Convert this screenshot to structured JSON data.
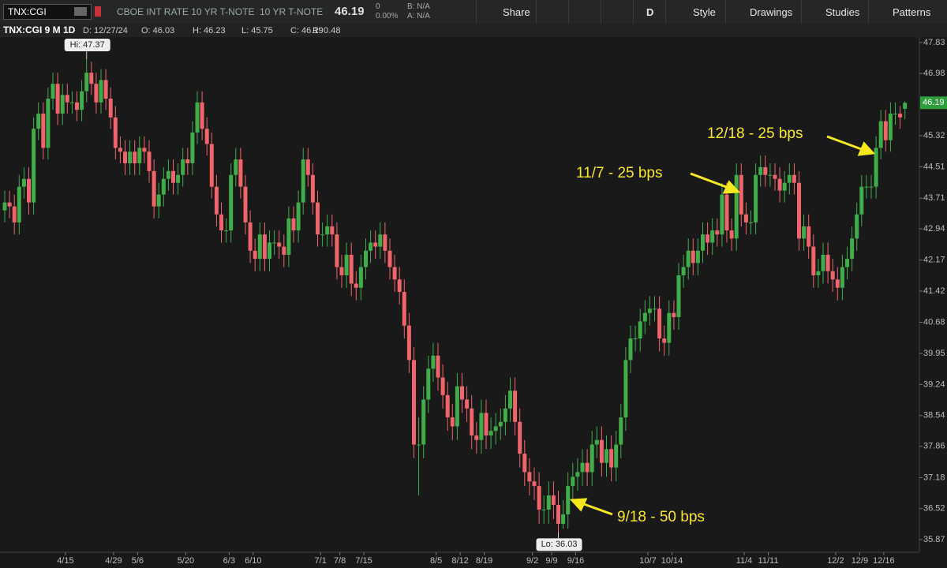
{
  "toolbar": {
    "symbol": "TNX:CGI",
    "description": "CBOE INT RATE 10 YR T-NOTE",
    "short_name": "10 YR T-NOTE",
    "last": "46.19",
    "change": "0",
    "change_pct": "0.00%",
    "bid": "B: N/A",
    "ask": "A: N/A",
    "buttons": [
      "Share",
      "D",
      "Style",
      "Drawings",
      "Studies",
      "Patterns"
    ]
  },
  "chart_data": {
    "type": "candlestick",
    "header": "TNX:CGI 9 M 1D",
    "info": [
      "D: 12/27/24",
      "O: 46.03",
      "H: 46.23",
      "L: 45.75",
      "C: 46.19",
      "R: 0.48"
    ],
    "categories": [
      null,
      null,
      null,
      null,
      null,
      null,
      null,
      null,
      null,
      "4/15",
      null,
      null,
      null,
      null,
      null,
      null,
      null,
      null,
      null,
      "4/29",
      null,
      null,
      null,
      null,
      "5/6",
      null,
      null,
      null,
      null,
      null,
      null,
      null,
      null,
      null,
      "5/20",
      null,
      null,
      null,
      null,
      null,
      null,
      null,
      null,
      "6/3",
      null,
      null,
      null,
      null,
      "6/10",
      null,
      null,
      null,
      null,
      null,
      null,
      null,
      null,
      null,
      null,
      null,
      null,
      null,
      "7/1",
      null,
      null,
      null,
      "7/8",
      null,
      null,
      null,
      null,
      "7/15",
      null,
      null,
      null,
      null,
      null,
      null,
      null,
      null,
      null,
      null,
      null,
      null,
      null,
      null,
      "8/5",
      null,
      null,
      null,
      null,
      "8/12",
      null,
      null,
      null,
      null,
      "8/19",
      null,
      null,
      null,
      null,
      null,
      null,
      null,
      null,
      null,
      "9/2",
      null,
      null,
      null,
      "9/9",
      null,
      null,
      null,
      null,
      "9/16",
      null,
      null,
      null,
      null,
      null,
      null,
      null,
      null,
      null,
      null,
      null,
      null,
      null,
      null,
      "10/7",
      null,
      null,
      null,
      null,
      "10/14",
      null,
      null,
      null,
      null,
      null,
      null,
      null,
      null,
      null,
      null,
      null,
      null,
      null,
      null,
      "11/4",
      null,
      null,
      null,
      null,
      "11/11",
      null,
      null,
      null,
      null,
      null,
      null,
      null,
      null,
      null,
      null,
      null,
      null,
      null,
      "12/2",
      null,
      null,
      null,
      null,
      "12/9",
      null,
      null,
      null,
      null,
      "12/16",
      null,
      null,
      null,
      null,
      null,
      null,
      null,
      null
    ],
    "ohlc": [
      [
        43.4,
        43.9,
        43.1,
        43.6
      ],
      [
        43.6,
        43.9,
        43.2,
        43.5
      ],
      [
        43.5,
        43.8,
        42.8,
        43.1
      ],
      [
        43.1,
        44.3,
        42.8,
        44.0
      ],
      [
        44.0,
        44.5,
        43.7,
        44.2
      ],
      [
        44.2,
        44.5,
        43.3,
        43.6
      ],
      [
        43.6,
        45.8,
        43.3,
        45.5
      ],
      [
        45.5,
        46.2,
        45.2,
        45.9
      ],
      [
        45.9,
        46.2,
        44.7,
        45.0
      ],
      [
        45.0,
        46.6,
        44.7,
        46.3
      ],
      [
        46.3,
        47.0,
        46.0,
        46.7
      ],
      [
        46.7,
        47.0,
        45.6,
        45.9
      ],
      [
        45.9,
        46.7,
        45.6,
        46.4
      ],
      [
        46.4,
        46.7,
        45.9,
        46.2
      ],
      [
        46.2,
        46.5,
        45.9,
        46.2
      ],
      [
        46.2,
        46.5,
        45.7,
        46.0
      ],
      [
        46.0,
        46.8,
        45.7,
        46.5
      ],
      [
        46.5,
        47.37,
        46.2,
        47.0
      ],
      [
        47.0,
        47.3,
        46.4,
        46.7
      ],
      [
        46.7,
        47.0,
        45.9,
        46.2
      ],
      [
        46.2,
        47.1,
        45.9,
        46.8
      ],
      [
        46.8,
        47.1,
        46.0,
        46.3
      ],
      [
        46.3,
        46.6,
        45.5,
        45.8
      ],
      [
        45.8,
        46.1,
        44.7,
        45.0
      ],
      [
        45.0,
        45.3,
        44.6,
        44.9
      ],
      [
        44.9,
        45.2,
        44.3,
        44.6
      ],
      [
        44.6,
        45.2,
        44.3,
        44.9
      ],
      [
        44.9,
        45.2,
        44.3,
        44.6
      ],
      [
        44.6,
        45.3,
        44.3,
        45.0
      ],
      [
        45.0,
        45.3,
        44.6,
        44.9
      ],
      [
        44.9,
        45.2,
        44.1,
        44.4
      ],
      [
        44.4,
        44.7,
        43.2,
        43.5
      ],
      [
        43.5,
        44.1,
        43.2,
        43.8
      ],
      [
        43.8,
        44.5,
        43.5,
        44.2
      ],
      [
        44.2,
        44.7,
        43.9,
        44.4
      ],
      [
        44.4,
        44.7,
        43.8,
        44.1
      ],
      [
        44.1,
        44.6,
        43.8,
        44.3
      ],
      [
        44.3,
        45.0,
        44.0,
        44.7
      ],
      [
        44.7,
        45.0,
        44.3,
        44.6
      ],
      [
        44.6,
        45.7,
        44.3,
        45.4
      ],
      [
        45.4,
        46.5,
        45.1,
        46.2
      ],
      [
        46.2,
        46.5,
        45.2,
        45.5
      ],
      [
        45.5,
        45.8,
        44.8,
        45.1
      ],
      [
        45.1,
        45.4,
        43.7,
        44.0
      ],
      [
        44.0,
        44.3,
        43.0,
        43.3
      ],
      [
        43.3,
        43.6,
        42.6,
        42.9
      ],
      [
        42.9,
        43.2,
        42.6,
        42.9
      ],
      [
        42.9,
        44.6,
        42.6,
        44.3
      ],
      [
        44.3,
        45.0,
        44.0,
        44.7
      ],
      [
        44.7,
        45.0,
        43.7,
        44.0
      ],
      [
        44.0,
        44.3,
        42.8,
        43.1
      ],
      [
        43.1,
        43.4,
        42.1,
        42.4
      ],
      [
        42.4,
        42.7,
        41.9,
        42.2
      ],
      [
        42.2,
        43.1,
        41.9,
        42.8
      ],
      [
        42.8,
        43.1,
        41.9,
        42.2
      ],
      [
        42.2,
        42.9,
        41.9,
        42.6
      ],
      [
        42.6,
        42.9,
        42.3,
        42.6
      ],
      [
        42.6,
        42.9,
        42.2,
        42.5
      ],
      [
        42.5,
        42.8,
        42.0,
        42.3
      ],
      [
        42.3,
        43.5,
        42.0,
        43.2
      ],
      [
        43.2,
        43.5,
        42.6,
        42.9
      ],
      [
        42.9,
        43.9,
        42.6,
        43.6
      ],
      [
        43.6,
        45.0,
        43.3,
        44.7
      ],
      [
        44.7,
        45.0,
        44.0,
        44.3
      ],
      [
        44.3,
        44.6,
        43.3,
        43.6
      ],
      [
        43.6,
        43.9,
        42.5,
        42.8
      ],
      [
        42.8,
        43.1,
        42.5,
        42.8
      ],
      [
        42.8,
        43.3,
        42.5,
        43.0
      ],
      [
        43.0,
        43.3,
        42.5,
        42.8
      ],
      [
        42.8,
        43.1,
        41.7,
        42.0
      ],
      [
        42.0,
        42.3,
        41.5,
        41.8
      ],
      [
        41.8,
        42.6,
        41.5,
        42.3
      ],
      [
        42.3,
        42.6,
        41.3,
        41.6
      ],
      [
        41.6,
        41.9,
        41.2,
        41.5
      ],
      [
        41.5,
        42.3,
        41.2,
        42.0
      ],
      [
        42.0,
        42.7,
        41.7,
        42.4
      ],
      [
        42.4,
        42.9,
        42.1,
        42.6
      ],
      [
        42.6,
        42.9,
        42.2,
        42.5
      ],
      [
        42.5,
        43.1,
        42.2,
        42.8
      ],
      [
        42.8,
        43.1,
        42.1,
        42.4
      ],
      [
        42.4,
        42.7,
        41.7,
        42.0
      ],
      [
        42.0,
        42.3,
        41.4,
        41.7
      ],
      [
        41.7,
        42.0,
        41.1,
        41.4
      ],
      [
        41.4,
        41.7,
        40.3,
        40.6
      ],
      [
        40.6,
        40.9,
        39.5,
        39.8
      ],
      [
        39.8,
        40.1,
        37.6,
        37.9
      ],
      [
        37.9,
        38.5,
        36.8,
        37.9
      ],
      [
        37.9,
        39.2,
        37.6,
        38.9
      ],
      [
        38.9,
        39.9,
        38.6,
        39.6
      ],
      [
        39.6,
        40.2,
        39.3,
        39.9
      ],
      [
        39.9,
        40.2,
        39.1,
        39.4
      ],
      [
        39.4,
        39.7,
        38.7,
        39.0
      ],
      [
        39.0,
        39.3,
        38.2,
        38.5
      ],
      [
        38.5,
        38.8,
        38.0,
        38.3
      ],
      [
        38.3,
        39.5,
        38.0,
        39.2
      ],
      [
        39.2,
        39.5,
        38.6,
        38.9
      ],
      [
        38.9,
        39.2,
        38.4,
        38.7
      ],
      [
        38.7,
        39.0,
        37.8,
        38.1
      ],
      [
        38.1,
        38.4,
        37.7,
        38.0
      ],
      [
        38.0,
        38.9,
        37.7,
        38.6
      ],
      [
        38.6,
        38.9,
        37.8,
        38.1
      ],
      [
        38.1,
        38.5,
        37.8,
        38.2
      ],
      [
        38.2,
        38.6,
        37.9,
        38.3
      ],
      [
        38.3,
        38.7,
        38.0,
        38.4
      ],
      [
        38.4,
        39.0,
        38.1,
        38.7
      ],
      [
        38.7,
        39.4,
        38.4,
        39.1
      ],
      [
        39.1,
        39.4,
        38.1,
        38.4
      ],
      [
        38.4,
        38.7,
        37.4,
        37.7
      ],
      [
        37.7,
        38.0,
        37.0,
        37.3
      ],
      [
        37.3,
        37.6,
        36.8,
        37.1
      ],
      [
        37.1,
        37.4,
        36.7,
        37.0
      ],
      [
        37.0,
        37.3,
        36.2,
        36.5
      ],
      [
        36.5,
        36.8,
        36.2,
        36.5
      ],
      [
        36.5,
        37.1,
        36.2,
        36.8
      ],
      [
        36.8,
        37.1,
        36.3,
        36.6
      ],
      [
        36.6,
        36.9,
        36.03,
        36.2
      ],
      [
        36.2,
        36.7,
        36.1,
        36.4
      ],
      [
        36.4,
        37.3,
        36.1,
        37.0
      ],
      [
        37.0,
        37.5,
        36.7,
        37.2
      ],
      [
        37.2,
        37.6,
        36.9,
        37.3
      ],
      [
        37.3,
        37.8,
        37.0,
        37.5
      ],
      [
        37.5,
        37.8,
        37.0,
        37.3
      ],
      [
        37.3,
        38.2,
        37.0,
        37.9
      ],
      [
        37.9,
        38.3,
        37.6,
        38.0
      ],
      [
        38.0,
        38.3,
        37.2,
        37.5
      ],
      [
        37.5,
        38.1,
        37.2,
        37.8
      ],
      [
        37.8,
        38.1,
        37.1,
        37.4
      ],
      [
        37.4,
        38.2,
        37.1,
        37.9
      ],
      [
        37.9,
        38.8,
        37.6,
        38.5
      ],
      [
        38.5,
        40.1,
        38.2,
        39.8
      ],
      [
        39.8,
        40.6,
        39.5,
        40.3
      ],
      [
        40.3,
        40.6,
        40.0,
        40.3
      ],
      [
        40.3,
        41.0,
        40.0,
        40.7
      ],
      [
        40.7,
        41.2,
        40.4,
        40.9
      ],
      [
        40.9,
        41.3,
        40.6,
        41.0
      ],
      [
        41.0,
        41.3,
        40.7,
        41.0
      ],
      [
        41.0,
        41.3,
        40.0,
        40.3
      ],
      [
        40.3,
        40.6,
        39.9,
        40.2
      ],
      [
        40.2,
        41.2,
        39.9,
        40.9
      ],
      [
        40.9,
        41.2,
        40.5,
        40.8
      ],
      [
        40.8,
        42.1,
        40.5,
        41.8
      ],
      [
        41.8,
        42.3,
        41.5,
        42.0
      ],
      [
        42.0,
        42.7,
        41.7,
        42.4
      ],
      [
        42.4,
        42.7,
        41.8,
        42.1
      ],
      [
        42.1,
        42.7,
        41.8,
        42.4
      ],
      [
        42.4,
        43.1,
        42.1,
        42.8
      ],
      [
        42.8,
        43.1,
        42.3,
        42.6
      ],
      [
        42.6,
        43.2,
        42.3,
        42.9
      ],
      [
        42.9,
        43.2,
        42.5,
        42.8
      ],
      [
        42.8,
        44.1,
        42.5,
        43.8
      ],
      [
        43.8,
        44.1,
        42.6,
        42.9
      ],
      [
        42.9,
        43.2,
        42.4,
        42.7
      ],
      [
        42.7,
        44.6,
        42.4,
        44.3
      ],
      [
        44.3,
        44.6,
        43.0,
        43.3
      ],
      [
        43.3,
        43.6,
        42.8,
        43.1
      ],
      [
        43.1,
        43.4,
        42.8,
        43.1
      ],
      [
        43.1,
        44.6,
        42.8,
        44.3
      ],
      [
        44.3,
        44.8,
        44.0,
        44.5
      ],
      [
        44.5,
        44.8,
        44.0,
        44.3
      ],
      [
        44.3,
        44.6,
        44.0,
        44.3
      ],
      [
        44.3,
        44.6,
        43.9,
        44.2
      ],
      [
        44.2,
        44.5,
        43.6,
        43.9
      ],
      [
        43.9,
        44.4,
        43.6,
        44.1
      ],
      [
        44.1,
        44.6,
        43.8,
        44.3
      ],
      [
        44.3,
        44.6,
        43.8,
        44.1
      ],
      [
        44.1,
        44.4,
        42.4,
        42.7
      ],
      [
        42.7,
        43.3,
        42.4,
        43.0
      ],
      [
        43.0,
        43.3,
        42.2,
        42.5
      ],
      [
        42.5,
        42.8,
        41.5,
        41.8
      ],
      [
        41.8,
        42.2,
        41.5,
        41.9
      ],
      [
        41.9,
        42.6,
        41.6,
        42.3
      ],
      [
        42.3,
        42.6,
        41.6,
        41.9
      ],
      [
        41.9,
        42.2,
        41.4,
        41.7
      ],
      [
        41.7,
        42.0,
        41.2,
        41.5
      ],
      [
        41.5,
        42.3,
        41.2,
        42.0
      ],
      [
        42.0,
        42.5,
        41.7,
        42.2
      ],
      [
        42.2,
        43.0,
        41.9,
        42.7
      ],
      [
        42.7,
        43.6,
        42.4,
        43.3
      ],
      [
        43.3,
        44.3,
        43.0,
        44.0
      ],
      [
        44.0,
        44.3,
        43.7,
        44.0
      ],
      [
        44.0,
        44.3,
        43.7,
        44.0
      ],
      [
        44.0,
        45.3,
        43.7,
        45.0
      ],
      [
        45.0,
        46.0,
        44.7,
        45.7
      ],
      [
        45.7,
        46.0,
        44.9,
        45.2
      ],
      [
        45.2,
        46.2,
        44.9,
        45.9
      ],
      [
        45.9,
        46.2,
        45.6,
        45.9
      ],
      [
        45.9,
        46.1,
        45.5,
        45.8
      ],
      [
        46.03,
        46.23,
        45.75,
        46.19
      ]
    ],
    "up_color": "#3fae49",
    "down_color": "#f0646b",
    "tag_color": "#2e9e3c",
    "log_scale": true,
    "ylim": [
      35.61,
      47.98
    ],
    "yticks": [
      47.83,
      46.98,
      45.32,
      44.51,
      43.71,
      42.94,
      42.17,
      41.42,
      40.68,
      39.95,
      39.24,
      38.54,
      37.86,
      37.18,
      36.52,
      35.87
    ],
    "annotations": [
      "Hi: 47.37",
      "Lo: 36.03",
      "11/7 - 25 bps",
      "12/18 - 25 bps",
      "9/18 - 50 bps"
    ],
    "annotation_color": "#f7e81e"
  }
}
